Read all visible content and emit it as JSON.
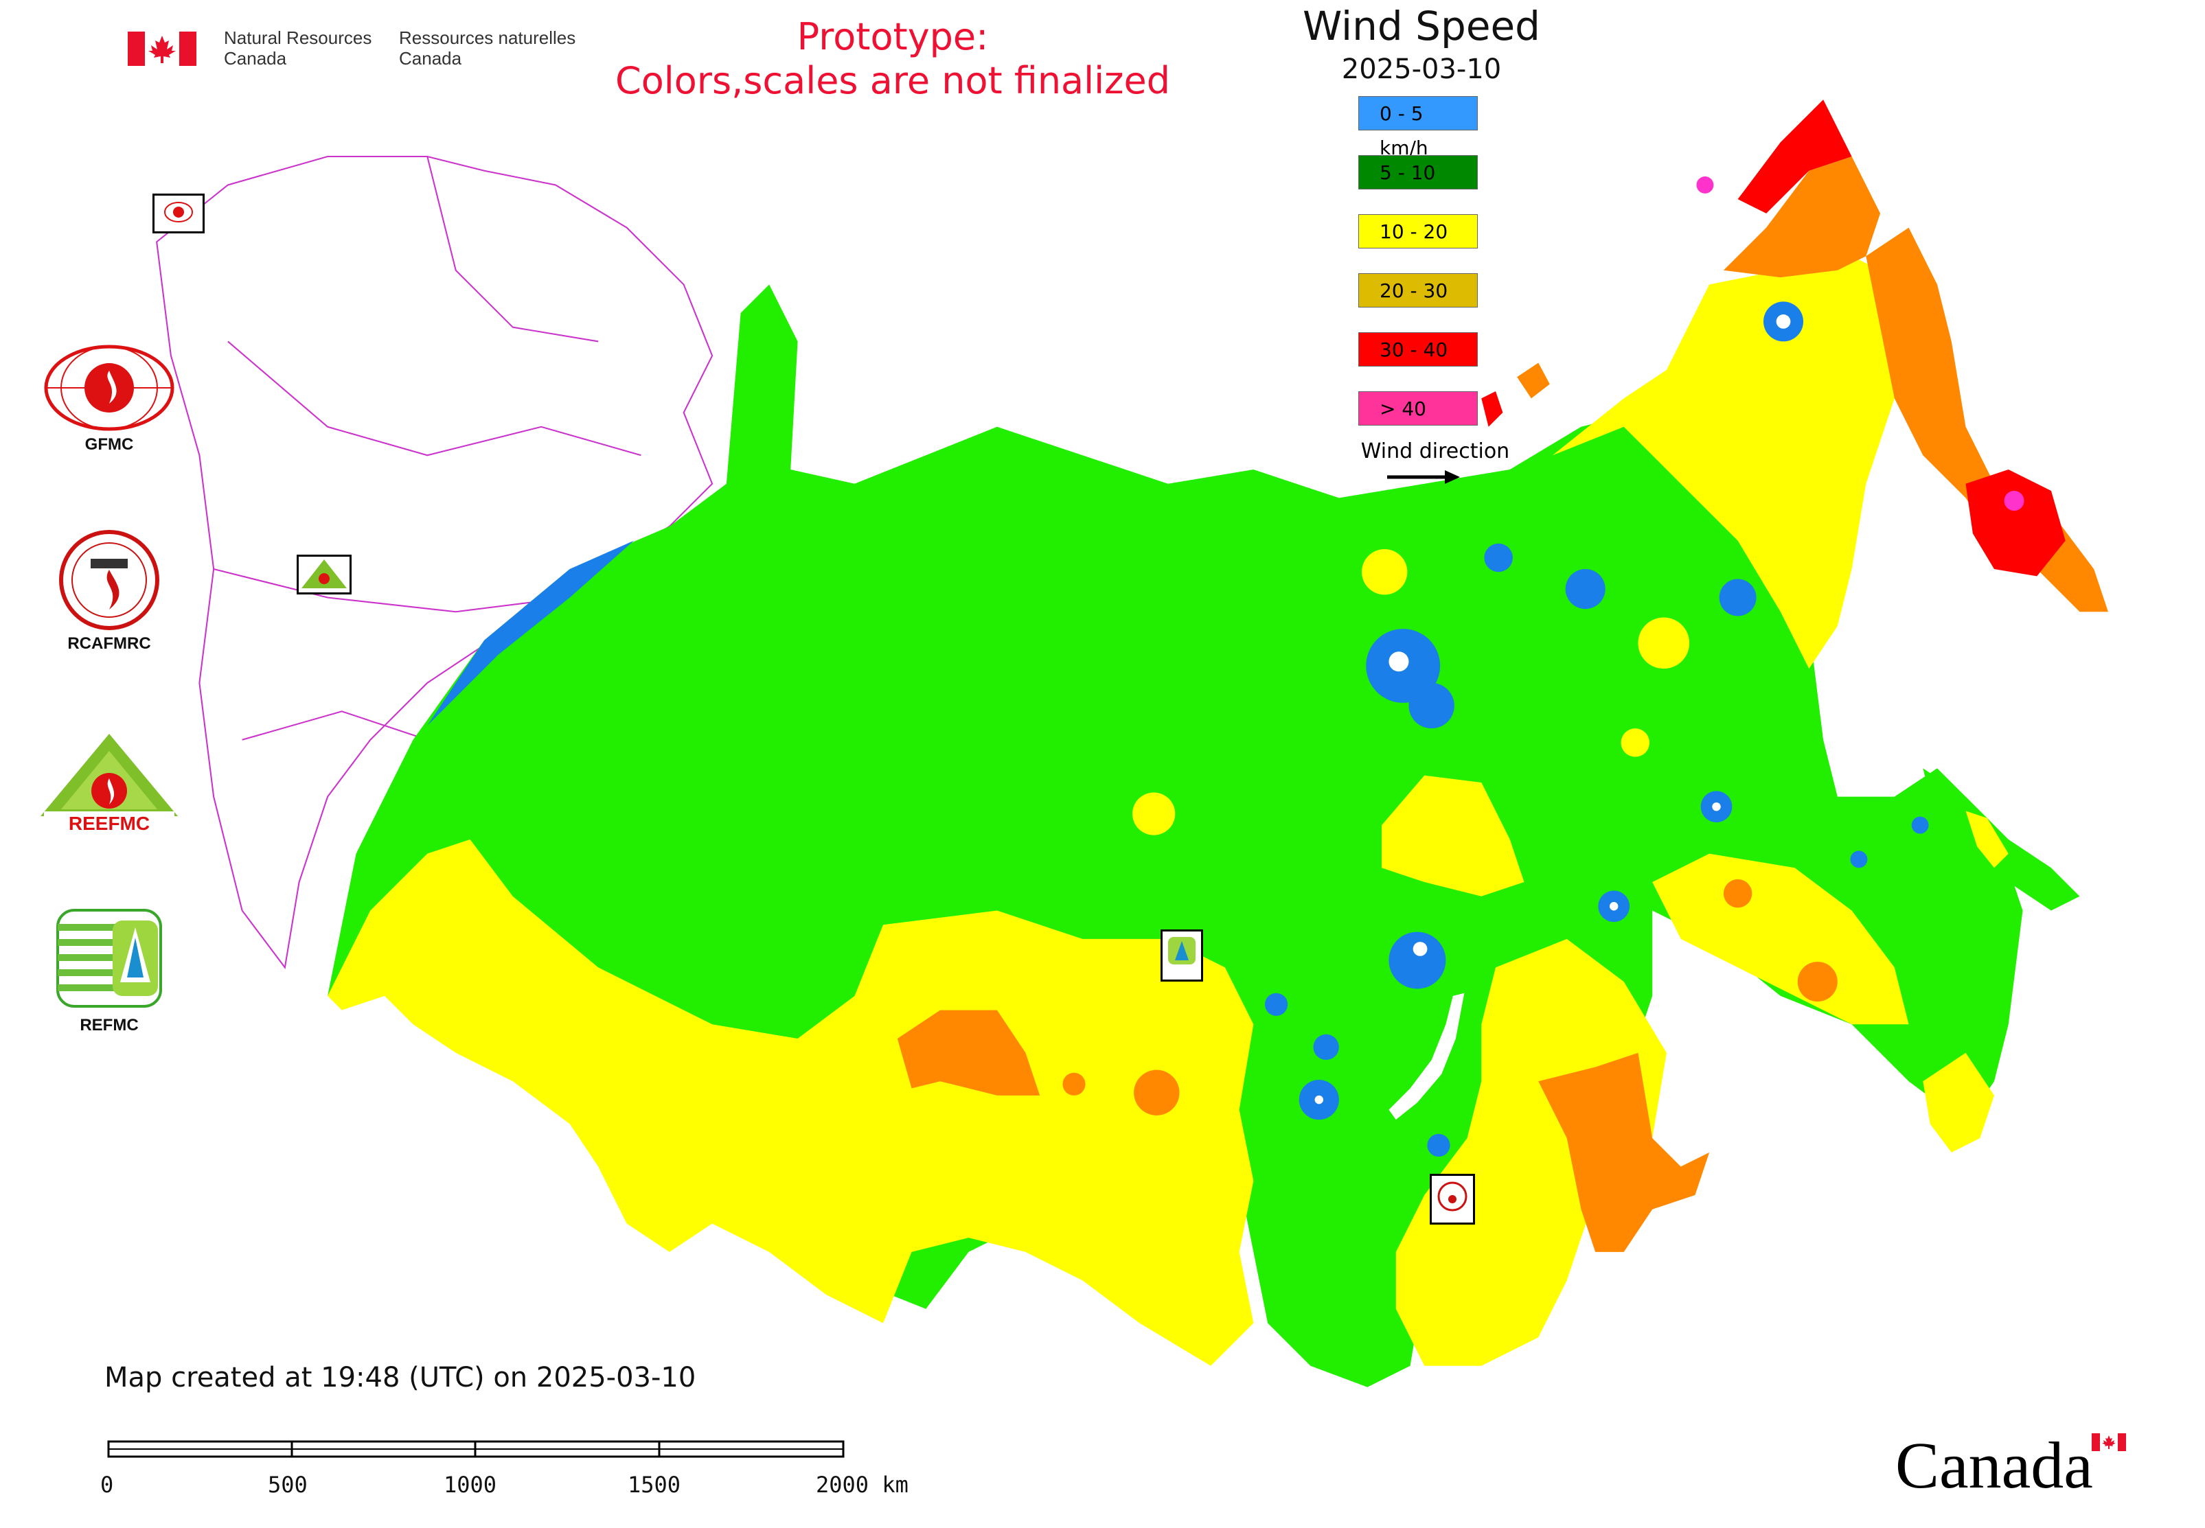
{
  "header": {
    "gov_en_line1": "Natural Resources",
    "gov_en_line2": "Canada",
    "gov_fr_line1": "Ressources naturelles",
    "gov_fr_line2": "Canada",
    "prototype_line1": "Prototype:",
    "prototype_line2": "Colors,scales are not finalized"
  },
  "legend": {
    "title": "Wind Speed",
    "date": "2025-03-10",
    "items": [
      {
        "label": "0 - 5 km/h",
        "color": "#3399ff"
      },
      {
        "label": "5 - 10",
        "color": "#008800"
      },
      {
        "label": "10 - 20",
        "color": "#ffff00"
      },
      {
        "label": "20 - 30",
        "color": "#ddbb00"
      },
      {
        "label": "30 - 40",
        "color": "#ff0000"
      },
      {
        "label": "> 40",
        "color": "#ff3399"
      }
    ],
    "wind_direction_label": "Wind direction"
  },
  "map_colors": {
    "calm": "#1a7fe8",
    "light": "#22ee00",
    "moderate": "#ffff00",
    "fresh": "#ff8800",
    "strong": "#ff0000",
    "very_strong": "#ff33cc",
    "boundary": "#cc33cc"
  },
  "logos": {
    "gfmc": "GFMC",
    "rcafmrc": "RCAFMRC",
    "reefmc": "REEFMC",
    "refmc": "REFMC",
    "reefmc_mark": "REEFMC"
  },
  "footer": {
    "map_created": "Map created at 19:48 (UTC) on 2025-03-10",
    "scale_ticks": [
      "0",
      "500",
      "1000",
      "1500",
      "2000 km"
    ],
    "wordmark": "Canada"
  }
}
